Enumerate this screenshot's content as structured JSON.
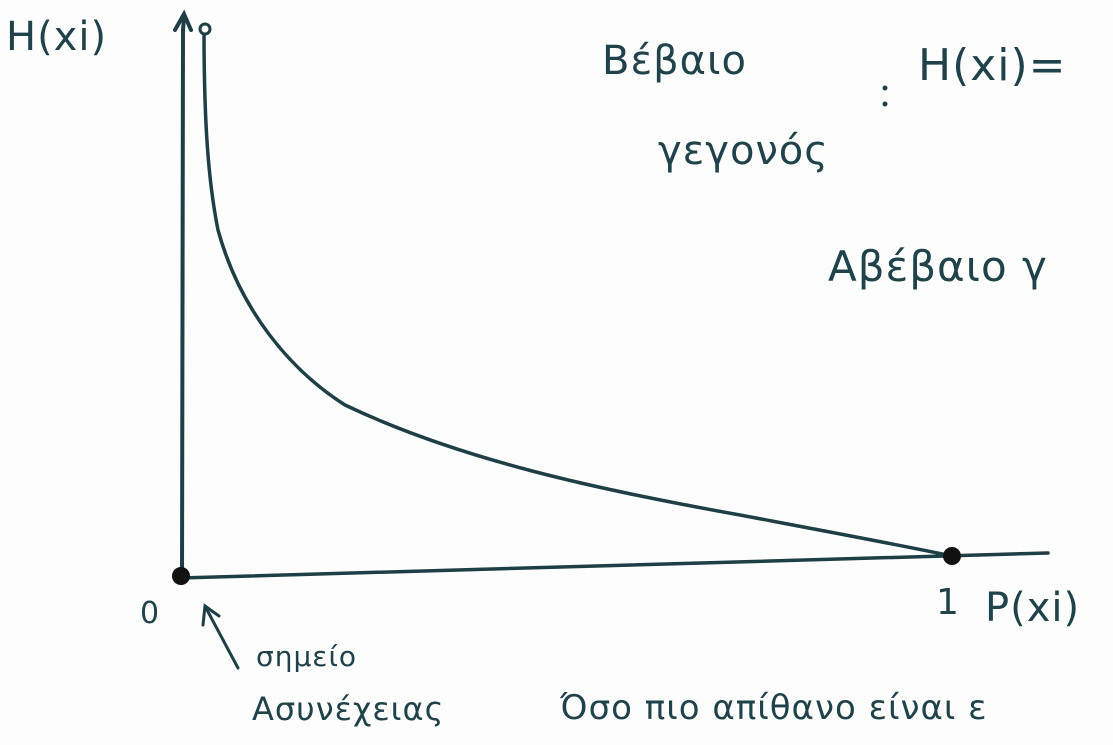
{
  "diagram": {
    "axes": {
      "y_label": "H(xi)",
      "x_label": "P(xi)",
      "origin_label": "0",
      "x_one_label": "1"
    },
    "annotations": {
      "certain_event_line1": "Βέβαιο",
      "certain_event_line2": "γεγονός",
      "certain_event_formula": "H(xi)=",
      "uncertain_event": "Αβέβαιο γ",
      "discontinuity_line1": "σημείο",
      "discontinuity_line2": "Ασυνέχειας",
      "bottom_text": "Όσο πιο απίθανο είναι ε"
    },
    "colors": {
      "ink": "#1f3f46",
      "background": "#fdfdfd"
    }
  }
}
